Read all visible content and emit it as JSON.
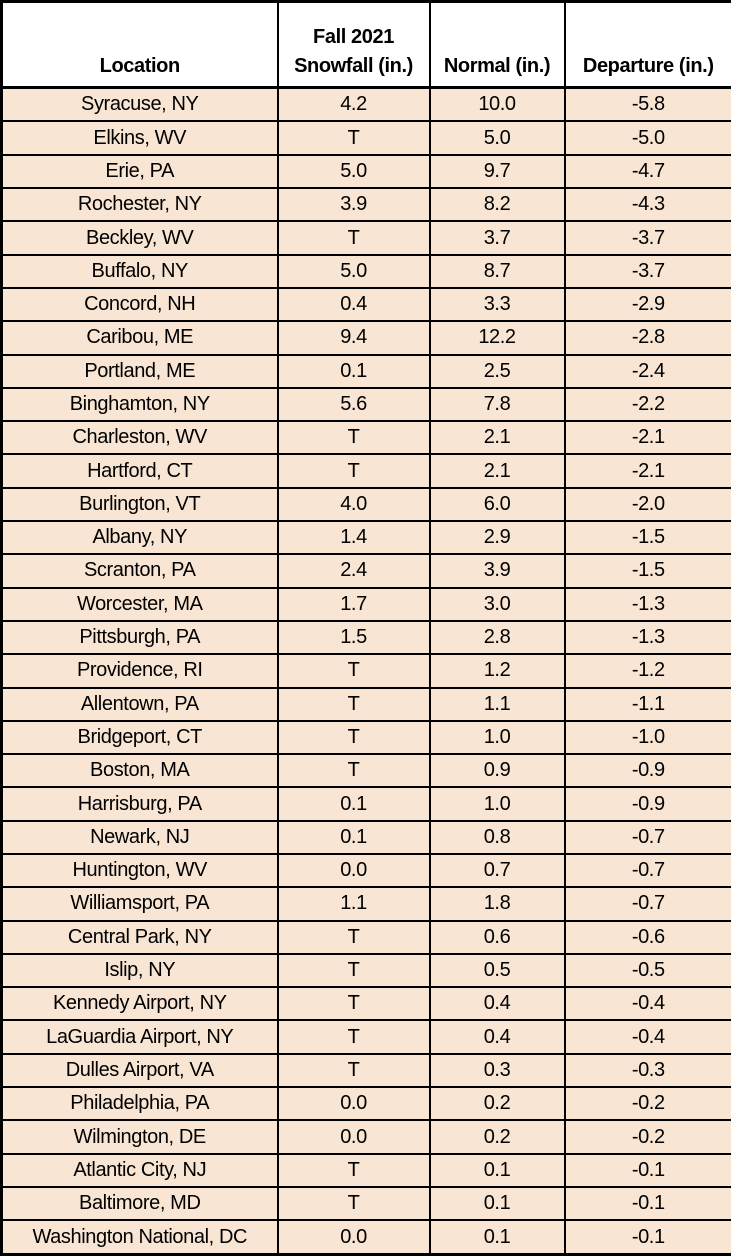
{
  "colors": {
    "header_bg": "#ffffff",
    "row_bg": "#f8e5d3",
    "border": "#000000",
    "text": "#000000"
  },
  "chart_data": {
    "type": "table",
    "columns": [
      "Location",
      "Fall 2021 Snowfall (in.)",
      "Normal (in.)",
      "Departure (in.)"
    ],
    "header": {
      "location": "Location",
      "snowfall_line1": "Fall 2021",
      "snowfall_line2": "Snowfall (in.)",
      "normal": "Normal (in.)",
      "departure": "Departure (in.)"
    },
    "rows": [
      {
        "location": "Syracuse, NY",
        "snowfall": "4.2",
        "normal": "10.0",
        "departure": "-5.8"
      },
      {
        "location": "Elkins, WV",
        "snowfall": "T",
        "normal": "5.0",
        "departure": "-5.0"
      },
      {
        "location": "Erie, PA",
        "snowfall": "5.0",
        "normal": "9.7",
        "departure": "-4.7"
      },
      {
        "location": "Rochester, NY",
        "snowfall": "3.9",
        "normal": "8.2",
        "departure": "-4.3"
      },
      {
        "location": "Beckley, WV",
        "snowfall": "T",
        "normal": "3.7",
        "departure": "-3.7"
      },
      {
        "location": "Buffalo, NY",
        "snowfall": "5.0",
        "normal": "8.7",
        "departure": "-3.7"
      },
      {
        "location": "Concord, NH",
        "snowfall": "0.4",
        "normal": "3.3",
        "departure": "-2.9"
      },
      {
        "location": "Caribou, ME",
        "snowfall": "9.4",
        "normal": "12.2",
        "departure": "-2.8"
      },
      {
        "location": "Portland, ME",
        "snowfall": "0.1",
        "normal": "2.5",
        "departure": "-2.4"
      },
      {
        "location": "Binghamton, NY",
        "snowfall": "5.6",
        "normal": "7.8",
        "departure": "-2.2"
      },
      {
        "location": "Charleston, WV",
        "snowfall": "T",
        "normal": "2.1",
        "departure": "-2.1"
      },
      {
        "location": "Hartford, CT",
        "snowfall": "T",
        "normal": "2.1",
        "departure": "-2.1"
      },
      {
        "location": "Burlington, VT",
        "snowfall": "4.0",
        "normal": "6.0",
        "departure": "-2.0"
      },
      {
        "location": "Albany, NY",
        "snowfall": "1.4",
        "normal": "2.9",
        "departure": "-1.5"
      },
      {
        "location": "Scranton, PA",
        "snowfall": "2.4",
        "normal": "3.9",
        "departure": "-1.5"
      },
      {
        "location": "Worcester, MA",
        "snowfall": "1.7",
        "normal": "3.0",
        "departure": "-1.3"
      },
      {
        "location": "Pittsburgh, PA",
        "snowfall": "1.5",
        "normal": "2.8",
        "departure": "-1.3"
      },
      {
        "location": "Providence, RI",
        "snowfall": "T",
        "normal": "1.2",
        "departure": "-1.2"
      },
      {
        "location": "Allentown, PA",
        "snowfall": "T",
        "normal": "1.1",
        "departure": "-1.1"
      },
      {
        "location": "Bridgeport, CT",
        "snowfall": "T",
        "normal": "1.0",
        "departure": "-1.0"
      },
      {
        "location": "Boston, MA",
        "snowfall": "T",
        "normal": "0.9",
        "departure": "-0.9"
      },
      {
        "location": "Harrisburg, PA",
        "snowfall": "0.1",
        "normal": "1.0",
        "departure": "-0.9"
      },
      {
        "location": "Newark, NJ",
        "snowfall": "0.1",
        "normal": "0.8",
        "departure": "-0.7"
      },
      {
        "location": "Huntington, WV",
        "snowfall": "0.0",
        "normal": "0.7",
        "departure": "-0.7"
      },
      {
        "location": "Williamsport, PA",
        "snowfall": "1.1",
        "normal": "1.8",
        "departure": "-0.7"
      },
      {
        "location": "Central Park, NY",
        "snowfall": "T",
        "normal": "0.6",
        "departure": "-0.6"
      },
      {
        "location": "Islip, NY",
        "snowfall": "T",
        "normal": "0.5",
        "departure": "-0.5"
      },
      {
        "location": "Kennedy Airport, NY",
        "snowfall": "T",
        "normal": "0.4",
        "departure": "-0.4"
      },
      {
        "location": "LaGuardia Airport, NY",
        "snowfall": "T",
        "normal": "0.4",
        "departure": "-0.4"
      },
      {
        "location": "Dulles Airport, VA",
        "snowfall": "T",
        "normal": "0.3",
        "departure": "-0.3"
      },
      {
        "location": "Philadelphia, PA",
        "snowfall": "0.0",
        "normal": "0.2",
        "departure": "-0.2"
      },
      {
        "location": "Wilmington, DE",
        "snowfall": "0.0",
        "normal": "0.2",
        "departure": "-0.2"
      },
      {
        "location": "Atlantic City, NJ",
        "snowfall": "T",
        "normal": "0.1",
        "departure": "-0.1"
      },
      {
        "location": "Baltimore, MD",
        "snowfall": "T",
        "normal": "0.1",
        "departure": "-0.1"
      },
      {
        "location": "Washington National, DC",
        "snowfall": "0.0",
        "normal": "0.1",
        "departure": "-0.1"
      }
    ]
  }
}
